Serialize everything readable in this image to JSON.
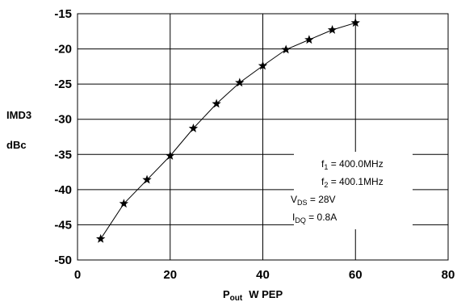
{
  "chart_data": {
    "type": "line",
    "xlabel": {
      "main": "P",
      "sub": "out",
      "rest": "W  PEP"
    },
    "ylabel": {
      "line1": "IMD3",
      "line2": "dBc"
    },
    "xlim": [
      0,
      80
    ],
    "ylim": [
      -50,
      -15
    ],
    "xticks": [
      "0",
      "20",
      "40",
      "60",
      "80"
    ],
    "yticks": [
      "-15",
      "-20",
      "-25",
      "-30",
      "-35",
      "-40",
      "-45",
      "-50"
    ],
    "x_grid_step": 20,
    "y_grid_step": 5,
    "grid": true,
    "marker": "star",
    "series": [
      {
        "x": [
          5,
          10,
          15,
          20,
          25,
          30,
          35,
          40,
          45,
          50,
          55,
          60
        ],
        "y": [
          -47.0,
          -42.0,
          -38.6,
          -35.2,
          -31.3,
          -27.8,
          -24.8,
          -22.4,
          -20.1,
          -18.7,
          -17.3,
          -16.3
        ]
      }
    ],
    "annotations": [
      {
        "main": "f",
        "sub": "1",
        "rest": " = 400.0MHz"
      },
      {
        "main": "f",
        "sub": "2",
        "rest": " = 400.1MHz"
      },
      {
        "main": "V",
        "sub": "DS",
        "rest": " = 28V"
      },
      {
        "main": "I",
        "sub": "DQ",
        "rest": " = 0.8A"
      }
    ],
    "annotation_placement": "lower-right"
  }
}
